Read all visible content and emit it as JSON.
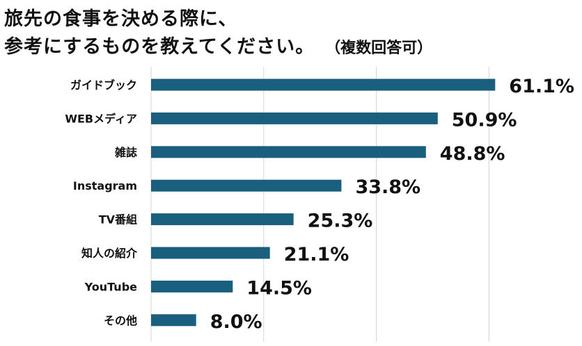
{
  "title_line1": "旅先の食事を決める際に、",
  "title_line2": "参考にするものを教えてください。",
  "title_note": "（複数回答可）",
  "chart_data": {
    "type": "bar",
    "orientation": "horizontal",
    "title": "旅先の食事を決める際に、参考にするものを教えてください。（複数回答可）",
    "categories": [
      "ガイドブック",
      "WEBメディア",
      "雑誌",
      "Instagram",
      "TV番組",
      "知人の紹介",
      "YouTube",
      "その他"
    ],
    "values": [
      61.1,
      50.9,
      48.8,
      33.8,
      25.3,
      21.1,
      14.5,
      8.0
    ],
    "value_labels": [
      "61.1%",
      "50.9%",
      "48.8%",
      "33.8%",
      "25.3%",
      "21.1%",
      "14.5%",
      "8.0%"
    ],
    "unit": "%",
    "xlim": [
      0,
      75
    ],
    "grid": true,
    "bar_color": "#1b5f7e",
    "grid_color": "#d4d4d4"
  }
}
